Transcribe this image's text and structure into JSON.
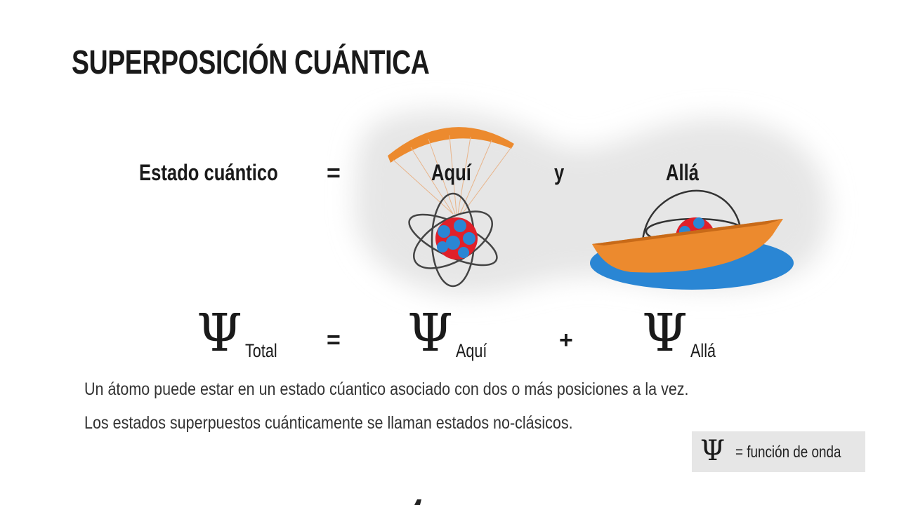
{
  "title": "SUPERPOSICIÓN CUÁNTICA",
  "equation_top": {
    "left_label": "Estado cuántico",
    "equals": "=",
    "here_label": "Aquí",
    "and_label": "y",
    "there_label": "Allá"
  },
  "equation_psi": {
    "symbol": "Ψ",
    "total_sub": "Total",
    "equals": "=",
    "here_sub": "Aquí",
    "plus": "+",
    "there_sub": "Allá"
  },
  "description": [
    "Un átomo puede estar en un estado cúantico asociado con dos o más posiciones a la vez.",
    "Los estados superpuestos cuánticamente se llaman estados no-clásicos."
  ],
  "legend": {
    "symbol": "Ψ",
    "text": "= función de onda"
  },
  "colors": {
    "orange": "#ec8a2e",
    "blue": "#2a86d4",
    "red": "#e0202a",
    "blob": "#e8e8e8"
  }
}
